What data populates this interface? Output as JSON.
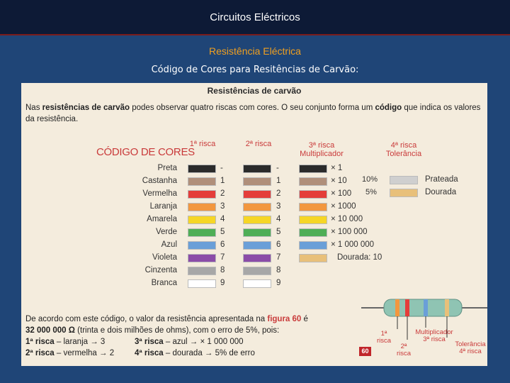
{
  "header": {
    "title": "Circuitos Eléctricos",
    "subtitle": "Resistência Eléctrica",
    "heading": "Código de Cores para Resitências de Carvão:"
  },
  "panel": {
    "title": "Resistências de carvão",
    "intro_1": "Nas ",
    "intro_bold_1": "resistências de carvão",
    "intro_2": " podes observar quatro riscas com cores. O seu conjunto forma um ",
    "intro_bold_2": "código",
    "intro_3": " que indica os valores da resistência.",
    "codigo_label": "CÓDIGO DE CORES",
    "col1": "1ª risca",
    "col2": "2ª risca",
    "col3": "3ª risca Multiplicador",
    "col4": "4ª risca Tolerância"
  },
  "colors": [
    {
      "name": "Preta",
      "hex": "#2b2b2b",
      "v": "-",
      "mult": "× 1"
    },
    {
      "name": "Castanha",
      "hex": "#b08f7a",
      "v": "1",
      "mult": "× 10"
    },
    {
      "name": "Vermelha",
      "hex": "#e43d3a",
      "v": "2",
      "mult": "× 100"
    },
    {
      "name": "Laranja",
      "hex": "#f2973f",
      "v": "3",
      "mult": "× 1000"
    },
    {
      "name": "Amarela",
      "hex": "#f6d626",
      "v": "4",
      "mult": "× 10 000"
    },
    {
      "name": "Verde",
      "hex": "#4fae56",
      "v": "5",
      "mult": "× 100 000"
    },
    {
      "name": "Azul",
      "hex": "#6a9fd8",
      "v": "6",
      "mult": "× 1 000 000"
    },
    {
      "name": "Violeta",
      "hex": "#8b4ca8",
      "v": "7",
      "mult": ""
    },
    {
      "name": "Cinzenta",
      "hex": "#a7a7a7",
      "v": "8",
      "mult": ""
    },
    {
      "name": "Branca",
      "hex": "#ffffff",
      "v": "9",
      "mult": ""
    }
  ],
  "dourada_mult": "Dourada: 10",
  "dourada_hex": "#e8c07a",
  "tolerance": [
    {
      "pct": "10%",
      "name": "Prateada",
      "hex": "#cfcfcf"
    },
    {
      "pct": "5%",
      "name": "Dourada",
      "hex": "#e8c07a"
    }
  ],
  "explanation": {
    "l1a": "De acordo com este código, o valor da resistência apresentada na ",
    "l1b": "figura 60",
    "l1c": " é",
    "l2a": "32 000 000 Ω",
    "l2b": " (trinta e dois milhões de ohms), com o erro de 5%, pois:",
    "r1a": "1ª risca",
    "r1b": " – laranja → 3",
    "r3a": "3ª risca",
    "r3b": " – azul → × 1 000 000",
    "r2a": "2ª risca",
    "r2b": " – vermelha → 2",
    "r4a": "4ª risca",
    "r4b": " – dourada → 5% de erro",
    "fig": "60"
  },
  "resistor_labels": {
    "a": "1ª risca",
    "b": "2ª risca",
    "c": "Multiplicador 3ª risca",
    "d": "Tolerância 4ª risca"
  }
}
